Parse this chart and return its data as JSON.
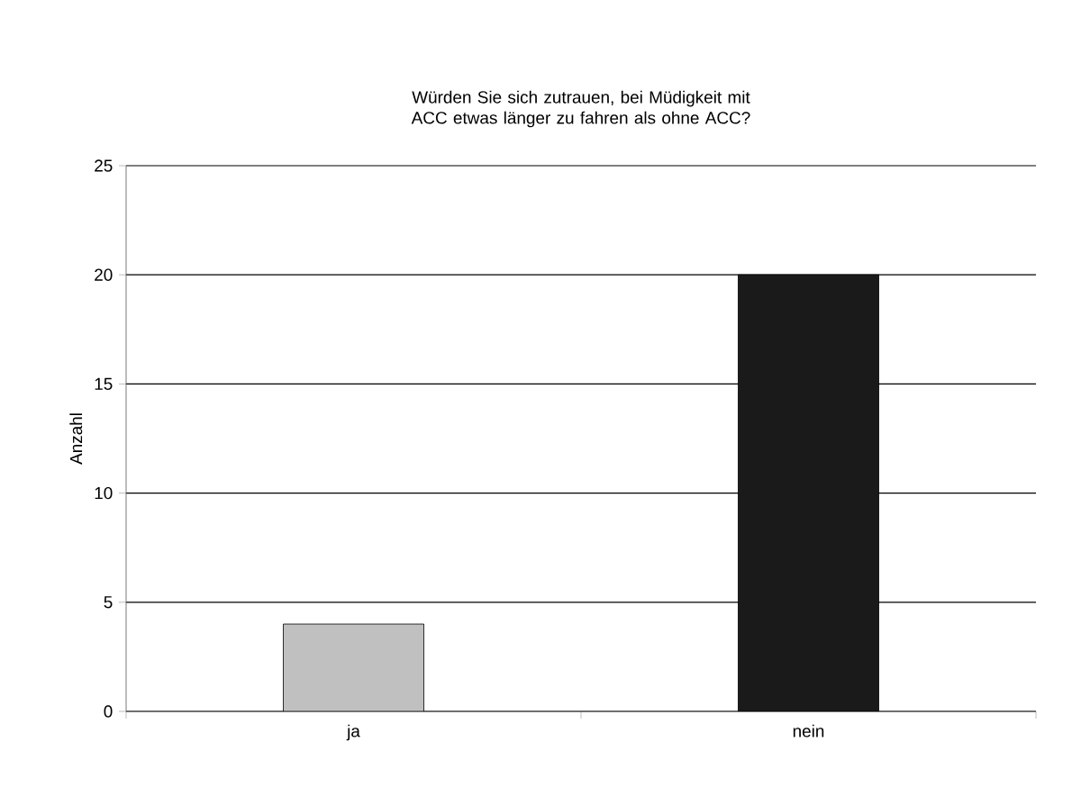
{
  "chart_data": {
    "type": "bar",
    "title": "Würden Sie sich zutrauen, bei Müdigkeit mit ACC etwas länger zu fahren als ohne ACC?",
    "ylabel": "Anzahl",
    "categories": [
      "ja",
      "nein"
    ],
    "values": [
      4,
      20
    ],
    "colors": [
      "#c0c0c0",
      "#1a1a1a"
    ],
    "ylim": [
      0,
      25
    ],
    "yticks": [
      0,
      5,
      10,
      15,
      20,
      25
    ],
    "grid": "y"
  }
}
